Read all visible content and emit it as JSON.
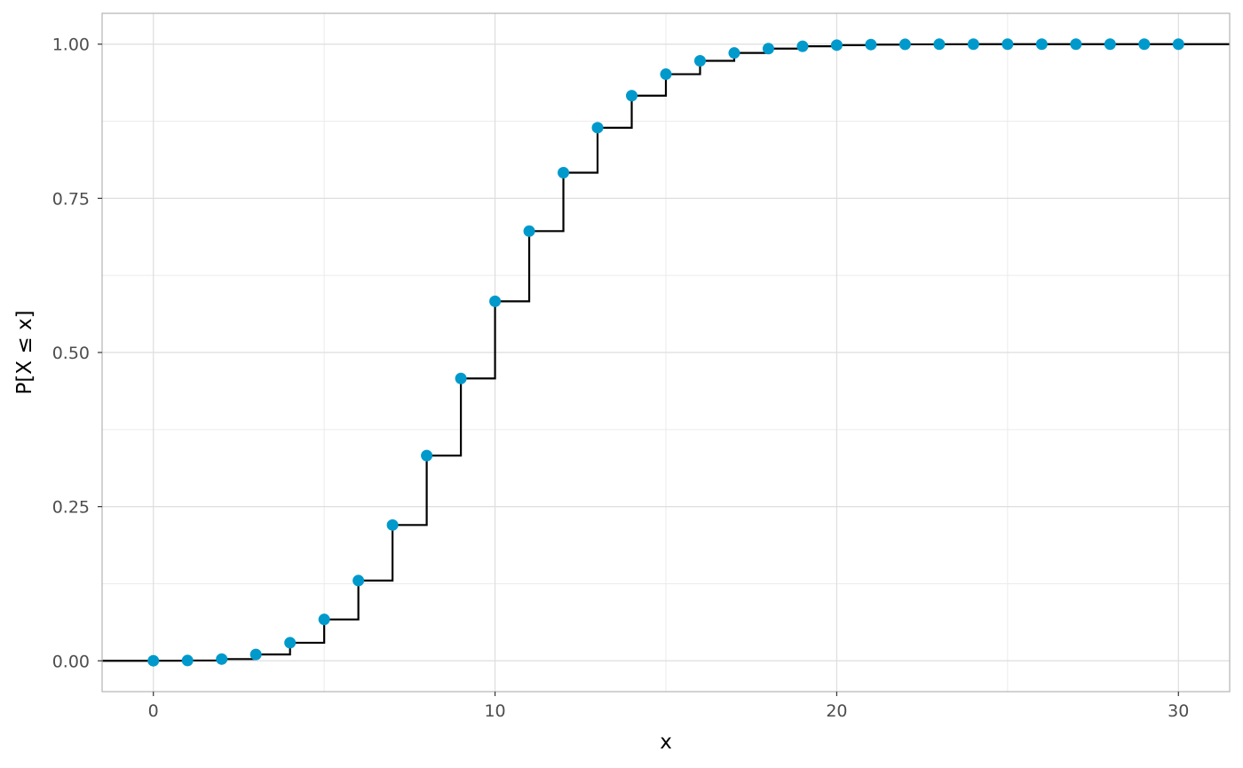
{
  "chart_data": {
    "type": "line",
    "subtype": "step-cdf",
    "title": "",
    "xlabel": "x",
    "ylabel": "P[X ≤ x]",
    "xlim": [
      -1.5,
      31.5
    ],
    "ylim": [
      -0.05,
      1.05
    ],
    "x_ticks": [
      0,
      10,
      20,
      30
    ],
    "x_tick_labels": [
      "0",
      "10",
      "20",
      "30"
    ],
    "y_ticks": [
      0,
      0.25,
      0.5,
      0.75,
      1.0
    ],
    "y_tick_labels": [
      "0.00",
      "0.25",
      "0.50",
      "0.75",
      "1.00"
    ],
    "grid": true,
    "legend": "none",
    "colors": {
      "points": "#0099CC",
      "step_line": "#000000",
      "grid_major": "#DEDEDE",
      "grid_minor": "#EBEBEB",
      "panel_border": "#B3B3B3"
    },
    "x": [
      0,
      1,
      2,
      3,
      4,
      5,
      6,
      7,
      8,
      9,
      10,
      11,
      12,
      13,
      14,
      15,
      16,
      17,
      18,
      19,
      20,
      21,
      22,
      23,
      24,
      25,
      26,
      27,
      28,
      29,
      30
    ],
    "y": [
      0.0001,
      0.0005,
      0.0028,
      0.0103,
      0.0293,
      0.0671,
      0.1301,
      0.2202,
      0.3328,
      0.4579,
      0.583,
      0.6968,
      0.7916,
      0.8645,
      0.9165,
      0.9513,
      0.973,
      0.9857,
      0.9928,
      0.9965,
      0.9984,
      0.9993,
      0.9997,
      0.9999,
      1.0,
      1.0,
      1.0,
      1.0,
      1.0,
      1.0,
      1.0
    ]
  }
}
